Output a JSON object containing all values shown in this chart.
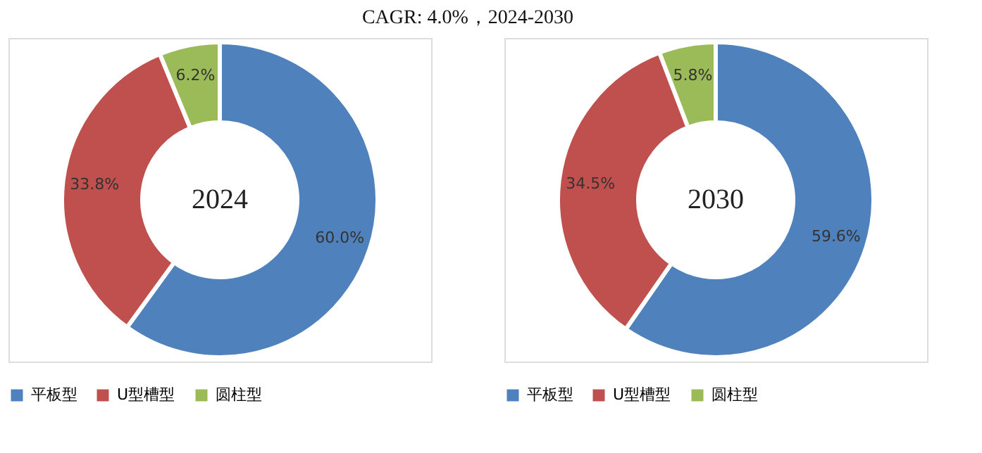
{
  "chart_data": [
    {
      "type": "donut",
      "title": "CAGR:   4.0%，2024-2030",
      "categories": [
        "平板型",
        "U型槽型",
        "圆柱型"
      ],
      "values": [
        60.0,
        33.8,
        6.2
      ],
      "colors": [
        "#4f81bd",
        "#c0504d",
        "#9bbb59"
      ],
      "value_labels": [
        "60.0%",
        "33.8%",
        "6.2%"
      ],
      "annotations": [
        "2024"
      ],
      "legend": "bottom"
    },
    {
      "type": "donut",
      "categories": [
        "平板型",
        "U型槽型",
        "圆柱型"
      ],
      "values": [
        59.6,
        34.5,
        5.8
      ],
      "colors": [
        "#4f81bd",
        "#c0504d",
        "#9bbb59"
      ],
      "value_labels": [
        "59.6%",
        "34.5%",
        "5.8%"
      ],
      "annotations": [
        "2030"
      ],
      "legend": "bottom"
    }
  ]
}
